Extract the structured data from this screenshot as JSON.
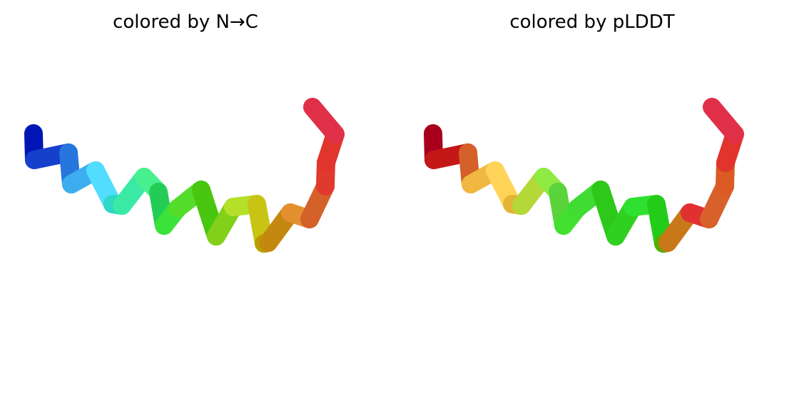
{
  "panels": [
    {
      "title": "colored by N→C",
      "segment_colors": [
        "#0016b4",
        "#1440cc",
        "#2676dd",
        "#3caef0",
        "#52dcff",
        "#2ed8c4",
        "#3aeaa4",
        "#48f090",
        "#22cc55",
        "#3ae23a",
        "#54dc2a",
        "#48c610",
        "#82d01a",
        "#b4e02a",
        "#c8c414",
        "#b8a000",
        "#c48810",
        "#e39030",
        "#d4602a",
        "#e03a2e",
        "#e0342c",
        "#e03048"
      ]
    },
    {
      "title": "colored by pLDDT",
      "segment_colors": [
        "#a8001c",
        "#c41818",
        "#d4602a",
        "#f0b840",
        "#ffd458",
        "#e4b438",
        "#b4d838",
        "#90ea44",
        "#5ad43a",
        "#44e030",
        "#40dc34",
        "#2ec81a",
        "#30d020",
        "#30e030",
        "#24cc1a",
        "#54b000",
        "#c87818",
        "#e03030",
        "#d8602a",
        "#dc5a24",
        "#e0342c",
        "#e03048"
      ]
    }
  ]
}
